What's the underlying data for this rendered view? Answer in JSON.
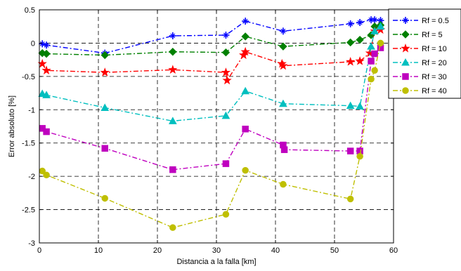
{
  "chart_data": {
    "type": "line",
    "title": "",
    "xlabel": "Distancia a la falla [km]",
    "ylabel": "Error absoluto [%]",
    "xlim": [
      0,
      60
    ],
    "ylim": [
      -3,
      0.5
    ],
    "xticks": [
      0,
      10,
      20,
      30,
      40,
      50,
      60
    ],
    "yticks": [
      -3,
      -2.5,
      -2,
      -1.5,
      -1,
      -0.5,
      0,
      0.5
    ],
    "xtick_labels": [
      "0",
      "10",
      "20",
      "30",
      "40",
      "50",
      "60"
    ],
    "ytick_labels": [
      "-3",
      "-2.5",
      "-2",
      "-1.5",
      "-1",
      "-0.5",
      "0",
      "0.5"
    ],
    "grid": true,
    "legend_position": "outside top-right",
    "series": [
      {
        "name": "Rf = 0.5",
        "color": "#0000ff",
        "marker": "plus-star",
        "x": [
          0.5,
          1.2,
          11.1,
          22.6,
          31.6,
          34.9,
          41.3,
          52.7,
          54.3,
          56.2,
          56.8,
          57.8
        ],
        "y": [
          -0.01,
          -0.03,
          -0.15,
          0.11,
          0.12,
          0.33,
          0.18,
          0.29,
          0.31,
          0.35,
          0.35,
          0.34
        ]
      },
      {
        "name": "Rf = 5",
        "color": "#008000",
        "marker": "diamond",
        "x": [
          0.5,
          1.2,
          11.1,
          22.6,
          31.6,
          34.9,
          41.3,
          52.7,
          54.3,
          56.2,
          56.8,
          57.8
        ],
        "y": [
          -0.15,
          -0.16,
          -0.18,
          -0.13,
          -0.14,
          0.1,
          -0.05,
          0.01,
          0.05,
          0.12,
          0.25,
          0.27
        ]
      },
      {
        "name": "Rf = 10",
        "color": "#ff0000",
        "marker": "star",
        "x": [
          0.5,
          1.2,
          11.1,
          22.6,
          31.6,
          31.8,
          34.6,
          34.9,
          41.1,
          41.3,
          52.7,
          54.3,
          56.0,
          56.8,
          57.8
        ],
        "y": [
          -0.31,
          -0.41,
          -0.44,
          -0.4,
          -0.44,
          -0.56,
          -0.18,
          -0.13,
          -0.31,
          -0.34,
          -0.28,
          -0.27,
          -0.15,
          0.18,
          0.2
        ]
      },
      {
        "name": "Rf = 20",
        "color": "#00bfbf",
        "marker": "triangle",
        "x": [
          0.5,
          1.2,
          11.1,
          22.6,
          31.6,
          34.9,
          41.3,
          52.7,
          54.3,
          56.2,
          56.8,
          57.8
        ],
        "y": [
          -0.76,
          -0.78,
          -0.97,
          -1.17,
          -1.09,
          -0.72,
          -0.91,
          -0.94,
          -0.95,
          -0.05,
          0.18,
          0.25
        ]
      },
      {
        "name": "Rf = 30",
        "color": "#bf00bf",
        "marker": "square",
        "x": [
          0.5,
          1.2,
          11.1,
          22.6,
          31.6,
          34.9,
          41.3,
          41.5,
          52.7,
          54.3,
          56.2,
          56.8,
          57.8
        ],
        "y": [
          -1.28,
          -1.33,
          -1.58,
          -1.9,
          -1.81,
          -1.29,
          -1.53,
          -1.6,
          -1.62,
          -1.62,
          -0.27,
          -0.16,
          -0.07
        ]
      },
      {
        "name": "Rf = 40",
        "color": "#bfbf00",
        "marker": "circle",
        "x": [
          0.5,
          1.2,
          11.1,
          22.6,
          31.6,
          34.9,
          41.3,
          52.7,
          54.3,
          56.2,
          56.8,
          57.8
        ],
        "y": [
          -1.92,
          -1.98,
          -2.33,
          -2.77,
          -2.57,
          -1.91,
          -2.12,
          -2.34,
          -1.7,
          -0.54,
          -0.41,
          0.0
        ]
      }
    ]
  }
}
